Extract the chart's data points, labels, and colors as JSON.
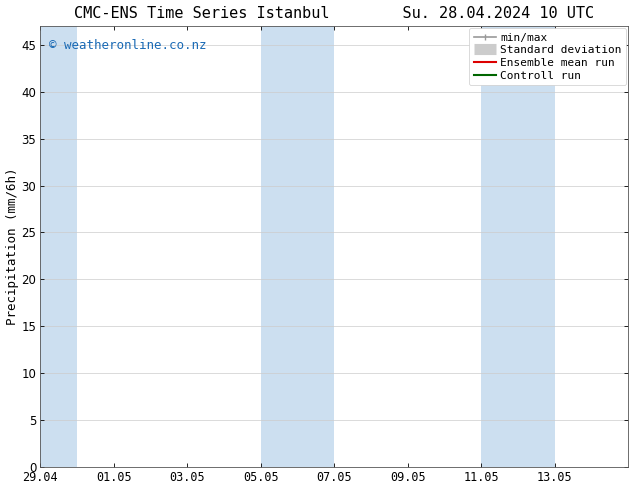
{
  "title_left": "CMC-ENS Time Series Istanbul",
  "title_right": "Su. 28.04.2024 10 UTC",
  "ylabel": "Precipitation (mm/6h)",
  "xlim_start": 0,
  "xlim_end": 16,
  "ylim": [
    0,
    47
  ],
  "yticks": [
    0,
    5,
    10,
    15,
    20,
    25,
    30,
    35,
    40,
    45
  ],
  "xtick_labels": [
    "29.04",
    "01.05",
    "03.05",
    "05.05",
    "07.05",
    "09.05",
    "11.05",
    "13.05"
  ],
  "xtick_positions": [
    0,
    2,
    4,
    6,
    8,
    10,
    12,
    14
  ],
  "shaded_bands": [
    {
      "x_start": 0,
      "x_end": 1,
      "color": "#ccdff0"
    },
    {
      "x_start": 6,
      "x_end": 8,
      "color": "#ccdff0"
    },
    {
      "x_start": 12,
      "x_end": 14,
      "color": "#ccdff0"
    }
  ],
  "watermark_text": "© weatheronline.co.nz",
  "watermark_color": "#1a6ab5",
  "watermark_fontsize": 9,
  "legend_items": [
    {
      "label": "min/max",
      "color": "#999999",
      "linewidth": 1.2,
      "linestyle": "-",
      "type": "minmax"
    },
    {
      "label": "Standard deviation",
      "color": "#cccccc",
      "linewidth": 8,
      "linestyle": "-",
      "type": "band"
    },
    {
      "label": "Ensemble mean run",
      "color": "#dd0000",
      "linewidth": 1.5,
      "linestyle": "-",
      "type": "line"
    },
    {
      "label": "Controll run",
      "color": "#006600",
      "linewidth": 1.5,
      "linestyle": "-",
      "type": "line"
    }
  ],
  "bg_color": "#ffffff",
  "plot_bg_color": "#ffffff",
  "title_fontsize": 11,
  "ylabel_fontsize": 9,
  "tick_fontsize": 8.5,
  "legend_fontsize": 8
}
